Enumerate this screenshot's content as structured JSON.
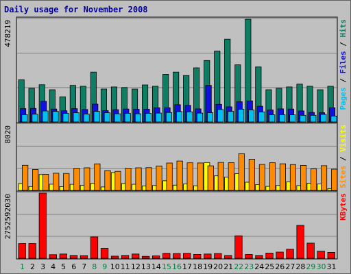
{
  "title": "Daily usage for November 2008",
  "colors": {
    "hits": "#0f7d63",
    "files": "#1010e0",
    "pages": "#00c0f0",
    "visits": "#ffff00",
    "sites": "#ff8c00",
    "kbytes": "#ff0000",
    "separator": "#000000",
    "weekend_tick": "#008040",
    "weekday_tick": "#000000"
  },
  "chart_data": [
    {
      "type": "bar",
      "title": "",
      "ylabel_parts": [
        "Pages",
        "Files",
        "Hits"
      ],
      "ymax_label": "478219",
      "ylim": [
        0,
        478219
      ],
      "categories": [
        "1",
        "2",
        "3",
        "4",
        "5",
        "6",
        "7",
        "8",
        "9",
        "10",
        "11",
        "12",
        "13",
        "14",
        "15",
        "16",
        "17",
        "18",
        "19",
        "20",
        "21",
        "22",
        "23",
        "24",
        "25",
        "26",
        "27",
        "28",
        "29",
        "30",
        "31"
      ],
      "series": [
        {
          "name": "Hits",
          "values": [
            196000,
            157000,
            173000,
            150000,
            117000,
            170000,
            166000,
            232000,
            153000,
            163000,
            160000,
            153000,
            172000,
            166000,
            222000,
            232000,
            216000,
            252000,
            286000,
            330000,
            385000,
            266000,
            478000,
            256000,
            150000,
            157000,
            163000,
            176000,
            166000,
            150000,
            166000
          ]
        },
        {
          "name": "Files",
          "values": [
            62000,
            63000,
            96000,
            60000,
            52000,
            62000,
            58000,
            83000,
            53000,
            57000,
            60000,
            59000,
            59000,
            66000,
            66000,
            80000,
            77000,
            61000,
            170000,
            82000,
            70000,
            94000,
            98000,
            73000,
            56000,
            61000,
            60000,
            51000,
            44000,
            43000,
            66000
          ]
        },
        {
          "name": "Pages",
          "values": [
            34000,
            36000,
            51000,
            49000,
            40000,
            43000,
            37000,
            49000,
            43000,
            38000,
            40000,
            38000,
            40000,
            41000,
            44000,
            48000,
            47000,
            41000,
            43000,
            58000,
            49000,
            59000,
            56000,
            47000,
            33000,
            34000,
            33000,
            31000,
            31000,
            35000,
            27000
          ]
        }
      ]
    },
    {
      "type": "bar",
      "title": "",
      "ylabel_parts": [
        "Sites",
        "Visits"
      ],
      "ymax_label": "8020",
      "ylim": [
        0,
        8020
      ],
      "categories": [
        "1",
        "2",
        "3",
        "4",
        "5",
        "6",
        "7",
        "8",
        "9",
        "10",
        "11",
        "12",
        "13",
        "14",
        "15",
        "16",
        "17",
        "18",
        "19",
        "20",
        "21",
        "22",
        "23",
        "24",
        "25",
        "26",
        "27",
        "28",
        "29",
        "30",
        "31"
      ],
      "series": [
        {
          "name": "Visits",
          "values": [
            840,
            480,
            1940,
            760,
            470,
            740,
            610,
            850,
            430,
            2170,
            840,
            750,
            550,
            600,
            1180,
            640,
            800,
            570,
            3400,
            1780,
            1620,
            2050,
            1000,
            720,
            490,
            600,
            1040,
            590,
            880,
            790,
            210
          ]
        },
        {
          "name": "Sites",
          "values": [
            3070,
            2560,
            1960,
            2100,
            2070,
            2700,
            2760,
            3240,
            2420,
            2320,
            2710,
            2760,
            2770,
            2980,
            3340,
            3580,
            3370,
            3350,
            3000,
            3420,
            3380,
            4480,
            3800,
            3170,
            3380,
            3250,
            3150,
            3060,
            2630,
            3020,
            2590
          ]
        }
      ]
    },
    {
      "type": "bar",
      "title": "",
      "ylabel_parts": [
        "KBytes"
      ],
      "ymax_label": "2752592030",
      "ylim": [
        0,
        2752592030
      ],
      "categories": [
        "1",
        "2",
        "3",
        "4",
        "5",
        "6",
        "7",
        "8",
        "9",
        "10",
        "11",
        "12",
        "13",
        "14",
        "15",
        "16",
        "17",
        "18",
        "19",
        "20",
        "21",
        "22",
        "23",
        "24",
        "25",
        "26",
        "27",
        "28",
        "29",
        "30",
        "31"
      ],
      "series": [
        {
          "name": "KBytes",
          "values": [
            620000000,
            620000000,
            2752592030,
            150000000,
            180000000,
            120000000,
            110000000,
            900000000,
            420000000,
            90000000,
            120000000,
            180000000,
            80000000,
            100000000,
            210000000,
            200000000,
            210000000,
            160000000,
            180000000,
            200000000,
            120000000,
            950000000,
            160000000,
            120000000,
            220000000,
            260000000,
            380000000,
            1390000000,
            640000000,
            300000000,
            250000000
          ]
        }
      ]
    }
  ],
  "weekend_days": [
    "1",
    "8",
    "9",
    "15",
    "16",
    "22",
    "23",
    "29",
    "30"
  ]
}
